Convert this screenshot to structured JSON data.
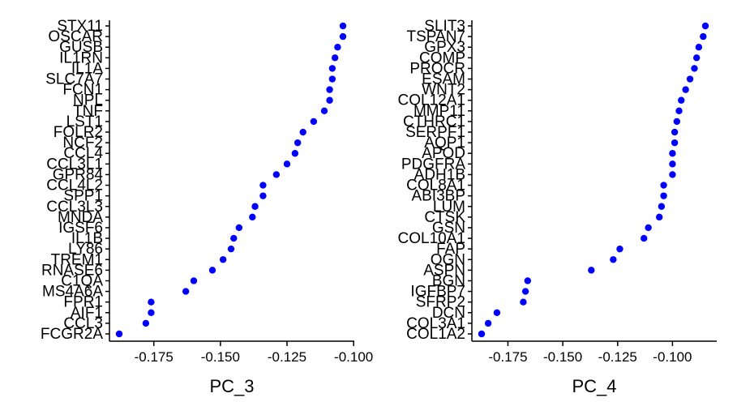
{
  "chart_data": [
    {
      "type": "scatter",
      "xlabel": "PC_3",
      "xlim": [
        -0.19,
        -0.1
      ],
      "xticks": [
        -0.175,
        -0.15,
        -0.125,
        -0.1
      ],
      "xtick_labels": [
        "-0.175",
        "-0.150",
        "-0.125",
        "-0.100"
      ],
      "point_color": "#0000ff",
      "genes": [
        "FCGR2A",
        "CCL3",
        "AIF1",
        "FPR1",
        "MS4A6A",
        "C1QA",
        "RNASE6",
        "TREM1",
        "LY86",
        "IL1B",
        "IGSF6",
        "MNDA",
        "CCL3L3",
        "SPP1",
        "CCL4L2",
        "GPR84",
        "CCL3L1",
        "CCL4",
        "NCF2",
        "FOLR2",
        "LST1",
        "TNF",
        "NPL",
        "FCN1",
        "SLC7A7",
        "IL1A",
        "IL1RN",
        "GUSB",
        "OSCAR",
        "STX11"
      ],
      "values": [
        -0.188,
        -0.178,
        -0.176,
        -0.176,
        -0.163,
        -0.16,
        -0.153,
        -0.149,
        -0.146,
        -0.145,
        -0.143,
        -0.138,
        -0.137,
        -0.134,
        -0.134,
        -0.129,
        -0.125,
        -0.122,
        -0.121,
        -0.119,
        -0.115,
        -0.111,
        -0.109,
        -0.109,
        -0.108,
        -0.108,
        -0.107,
        -0.106,
        -0.104,
        -0.104
      ]
    },
    {
      "type": "scatter",
      "xlabel": "PC_4",
      "xlim": [
        -0.19,
        -0.083
      ],
      "xticks": [
        -0.175,
        -0.15,
        -0.125,
        -0.1
      ],
      "xtick_labels": [
        "-0.175",
        "-0.150",
        "-0.125",
        "-0.100"
      ],
      "point_color": "#0000ff",
      "genes": [
        "COL1A2",
        "COL3A1",
        "DCN",
        "SFRP2",
        "IGFBP7",
        "BGN",
        "ASPN",
        "OGN",
        "FAP",
        "COL10A1",
        "GSN",
        "CTSK",
        "LUM",
        "ABI3BP",
        "COL8A1",
        "ADH1B",
        "PDGFRA",
        "APOD",
        "AQP1",
        "SERPF1",
        "CTHRC1",
        "MMP11",
        "COL12A1",
        "WNT2",
        "ESAM",
        "PROCR",
        "COMP",
        "GPX3",
        "TSPAN7",
        "SLIT3"
      ],
      "values": [
        -0.187,
        -0.184,
        -0.18,
        -0.168,
        -0.167,
        -0.166,
        -0.137,
        -0.127,
        -0.124,
        -0.113,
        -0.111,
        -0.106,
        -0.105,
        -0.104,
        -0.104,
        -0.1,
        -0.1,
        -0.1,
        -0.099,
        -0.099,
        -0.098,
        -0.097,
        -0.096,
        -0.094,
        -0.092,
        -0.09,
        -0.089,
        -0.088,
        -0.086,
        -0.085
      ]
    }
  ]
}
